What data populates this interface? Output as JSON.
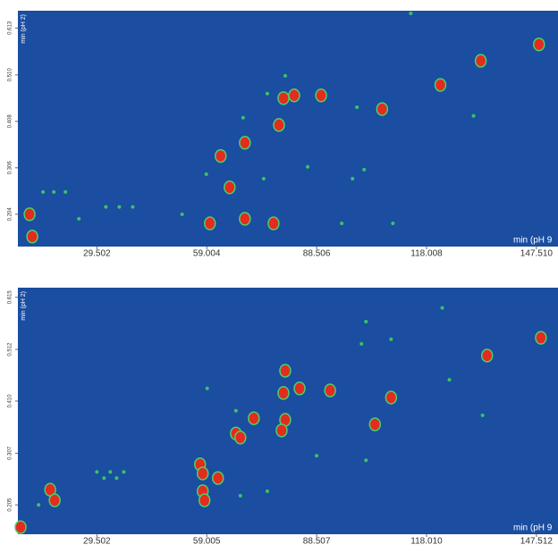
{
  "chart_data": [
    {
      "type": "scatter",
      "x_label": "min (pH 9",
      "y_label": "min (pH 2)",
      "xlim": [
        8.3,
        153.3
      ],
      "ylim": [
        0.133,
        0.651
      ],
      "xticks": [
        29.502,
        59.004,
        88.506,
        118.008,
        {
          "value": 147.51,
          "label": "147.510"
        }
      ],
      "yticks": [
        0.204,
        0.306,
        0.408,
        {
          "value": 0.51,
          "label": "0.510"
        },
        0.613
      ],
      "background": "#1b4da0",
      "series": [
        {
          "color": "#e32b1f",
          "x": [
            11.44,
            12.16,
            59.85,
            65.15,
            69.24,
            78.39,
            82.48,
            79.6,
            76.94,
            69.24,
            106.08,
            121.73,
            132.56,
            148.2,
            62.73,
            89.7
          ],
          "y": [
            0.204,
            0.155,
            0.184,
            0.263,
            0.361,
            0.4,
            0.465,
            0.459,
            0.184,
            0.194,
            0.435,
            0.488,
            0.541,
            0.577,
            0.332,
            0.465
          ]
        },
        {
          "color": "#38c46a",
          "x": [
            15.05,
            17.94,
            21.07,
            31.91,
            35.52,
            39.13,
            52.38,
            58.88,
            74.29,
            86.09,
            95.24,
            99.33,
            108.97,
            101.26,
            98.13,
            80.07,
            75.26,
            68.75,
            130.63,
            113.78,
            24.68
          ],
          "y": [
            0.253,
            0.253,
            0.253,
            0.22,
            0.22,
            0.22,
            0.204,
            0.292,
            0.282,
            0.308,
            0.184,
            0.439,
            0.184,
            0.302,
            0.282,
            0.508,
            0.469,
            0.416,
            0.42,
            0.645,
            0.194
          ]
        }
      ]
    },
    {
      "type": "scatter",
      "x_label": "min (pH 9",
      "y_label": "min (pH 2)",
      "xlim": [
        8.3,
        153.3
      ],
      "ylim": [
        0.147,
        0.634
      ],
      "xticks": [
        29.502,
        59.005,
        88.507,
        {
          "value": 118.01,
          "label": "118.010"
        },
        147.512
      ],
      "yticks": [
        0.205,
        0.307,
        {
          "value": 0.41,
          "label": "0.410"
        },
        0.512,
        0.615
      ],
      "background": "#1b4da0",
      "series": [
        {
          "color": "#e32b1f",
          "x": [
            9.03,
            16.98,
            18.18,
            57.2,
            57.92,
            57.92,
            58.4,
            62.01,
            66.83,
            68.03,
            79.59,
            80.07,
            79.11,
            83.93,
            92.12,
            108.49,
            104.16,
            134.26,
            148.71,
            71.64,
            80.07
          ],
          "y": [
            0.161,
            0.235,
            0.214,
            0.285,
            0.267,
            0.232,
            0.214,
            0.258,
            0.346,
            0.338,
            0.426,
            0.373,
            0.352,
            0.435,
            0.431,
            0.417,
            0.364,
            0.5,
            0.535,
            0.376,
            0.47
          ]
        },
        {
          "color": "#38c46a",
          "x": [
            29.5,
            31.43,
            33.11,
            34.8,
            36.73,
            59.12,
            66.83,
            101.75,
            108.49,
            101.75,
            88.5,
            124.14,
            133.05,
            13.85,
            75.26,
            68.03,
            100.54,
            122.22
          ],
          "y": [
            0.27,
            0.258,
            0.27,
            0.258,
            0.27,
            0.435,
            0.391,
            0.567,
            0.532,
            0.293,
            0.302,
            0.452,
            0.382,
            0.205,
            0.232,
            0.223,
            0.523,
            0.594
          ]
        }
      ]
    }
  ]
}
